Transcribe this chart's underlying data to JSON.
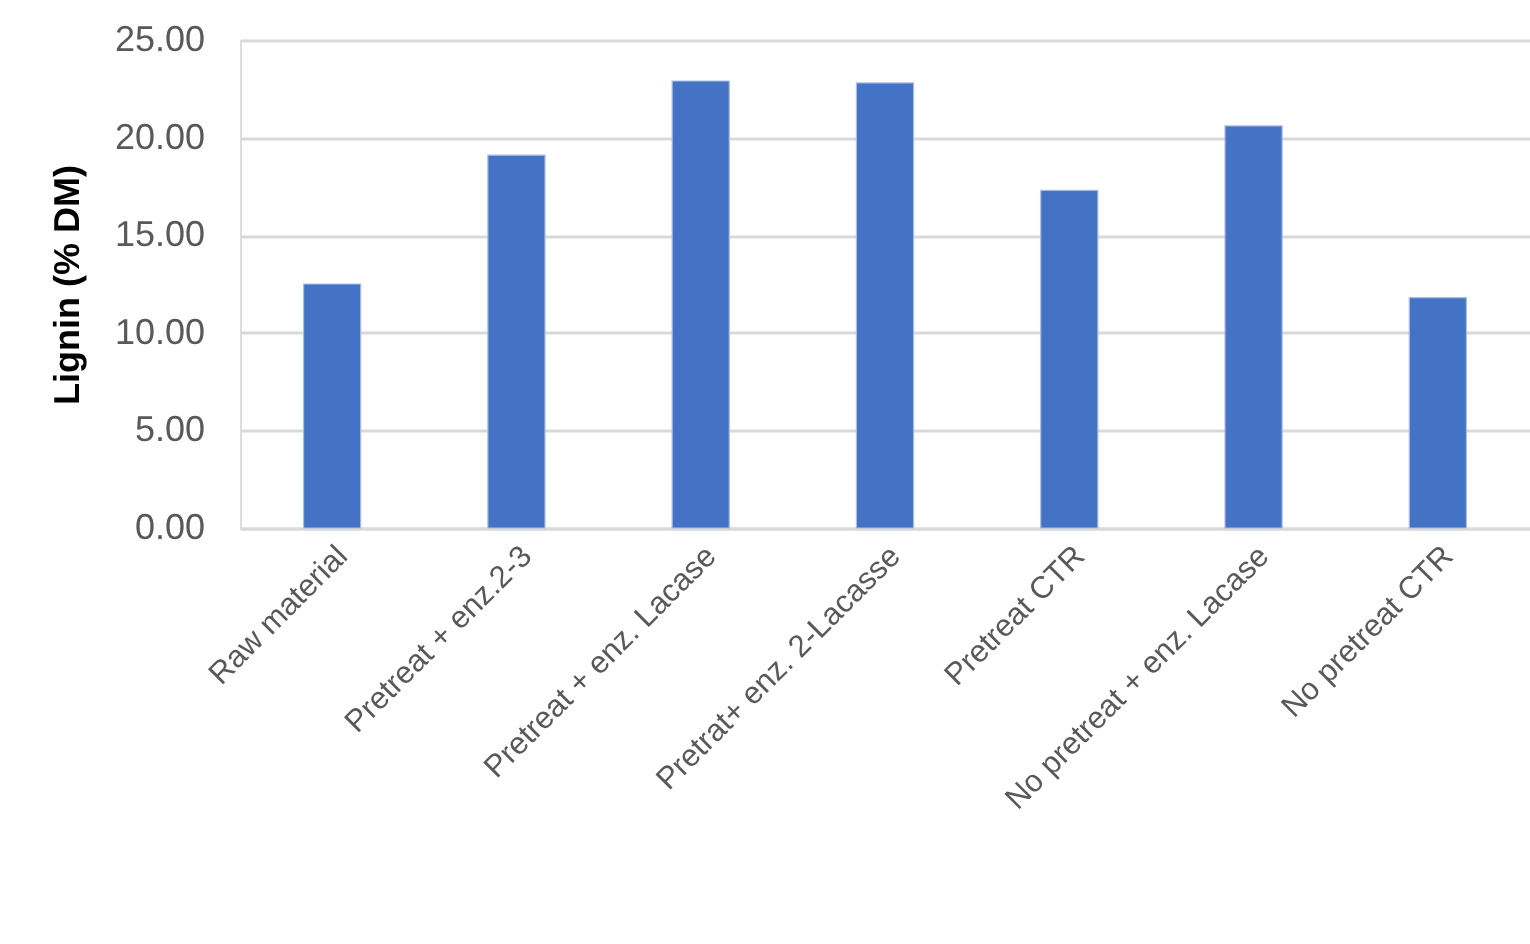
{
  "chart_data": {
    "type": "bar",
    "ylabel": "Lignin (% DM)",
    "categories": [
      "Raw material",
      "Pretreat + enz.2-3",
      "Pretreat + enz. Lacase",
      "Pretrat+ enz. 2-Lacasse",
      "Pretreat CTR",
      "No pretreat + enz. Lacase",
      "No pretreat CTR"
    ],
    "values": [
      12.5,
      19.1,
      22.9,
      22.8,
      17.3,
      20.6,
      11.8
    ],
    "color": "#4472c4",
    "ylim": [
      0,
      25
    ],
    "yticks": [
      {
        "value": 0,
        "label": "0.00"
      },
      {
        "value": 5,
        "label": "5.00"
      },
      {
        "value": 10,
        "label": "10.00"
      },
      {
        "value": 15,
        "label": "15.00"
      },
      {
        "value": 20,
        "label": "20.00"
      },
      {
        "value": 25,
        "label": "25.00"
      }
    ],
    "grid": "y"
  }
}
